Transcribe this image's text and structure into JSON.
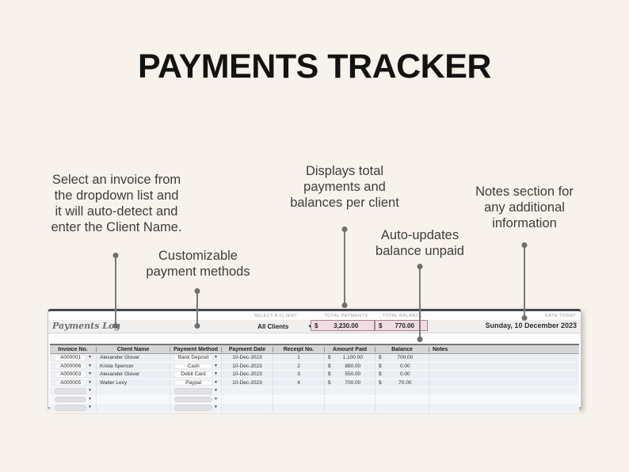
{
  "page": {
    "title": "PAYMENTS TRACKER"
  },
  "annotations": {
    "select_invoice": {
      "lines": [
        "Select an invoice from",
        "the dropdown list and",
        "it will auto-detect and",
        "enter the Client Name."
      ]
    },
    "payment_methods": {
      "lines": [
        "Customizable",
        "payment methods"
      ]
    },
    "totals": {
      "lines": [
        "Displays total",
        "payments and",
        "balances per client"
      ]
    },
    "auto_updates": {
      "lines": [
        "Auto-updates",
        "balance unpaid"
      ]
    },
    "notes": {
      "lines": [
        "Notes section for",
        "any additional",
        "information"
      ]
    }
  },
  "sheet": {
    "logo": "Payments Log",
    "select_client": {
      "label": "SELECT A CLIENT",
      "value": "All Clients"
    },
    "total_payments": {
      "label": "TOTAL PAYMENTS",
      "currency": "$",
      "value": "3,230.00"
    },
    "total_balance": {
      "label": "TOTAL BALANCE",
      "currency": "$",
      "value": "770.00"
    },
    "date": {
      "label": "DATE TODAY",
      "value": "Sunday, 10 December 2023"
    },
    "icons": {
      "dropdown": "▾"
    },
    "table": {
      "headers": [
        "Invoice No.",
        "Client Name",
        "Payment Method",
        "Payment Date",
        "Receipt No.",
        "Amount Paid",
        "Balance",
        "Notes"
      ],
      "rows": [
        {
          "invoice": "A000001",
          "client": "Alexander Glover",
          "method": "Bank Deposit",
          "date": "10-Dec-2023",
          "receipt": "1",
          "amount_currency": "$",
          "amount": "1,100.00",
          "balance_currency": "$",
          "balance": "700.00",
          "notes": ""
        },
        {
          "invoice": "A000006",
          "client": "Krista Spencer",
          "method": "Cash",
          "date": "10-Dec-2023",
          "receipt": "2",
          "amount_currency": "$",
          "amount": "880.00",
          "balance_currency": "$",
          "balance": "0.00",
          "notes": ""
        },
        {
          "invoice": "A000003",
          "client": "Alexander Glover",
          "method": "Debit Card",
          "date": "10-Dec-2023",
          "receipt": "3",
          "amount_currency": "$",
          "amount": "550.00",
          "balance_currency": "$",
          "balance": "0.00",
          "notes": ""
        },
        {
          "invoice": "A000005",
          "client": "Walter Levy",
          "method": "Paypal",
          "date": "10-Dec-2023",
          "receipt": "4",
          "amount_currency": "$",
          "amount": "700.00",
          "balance_currency": "$",
          "balance": "70.00",
          "notes": ""
        }
      ]
    }
  },
  "colors": {
    "background": "#f7f2ec",
    "accent_pink_fill": "#f0dce2",
    "accent_pink_border": "#aa8290",
    "connector_gray": "#7a7a7a",
    "table_header_gray": "#d5d5d5",
    "row_stripe": "#ebeef3"
  }
}
